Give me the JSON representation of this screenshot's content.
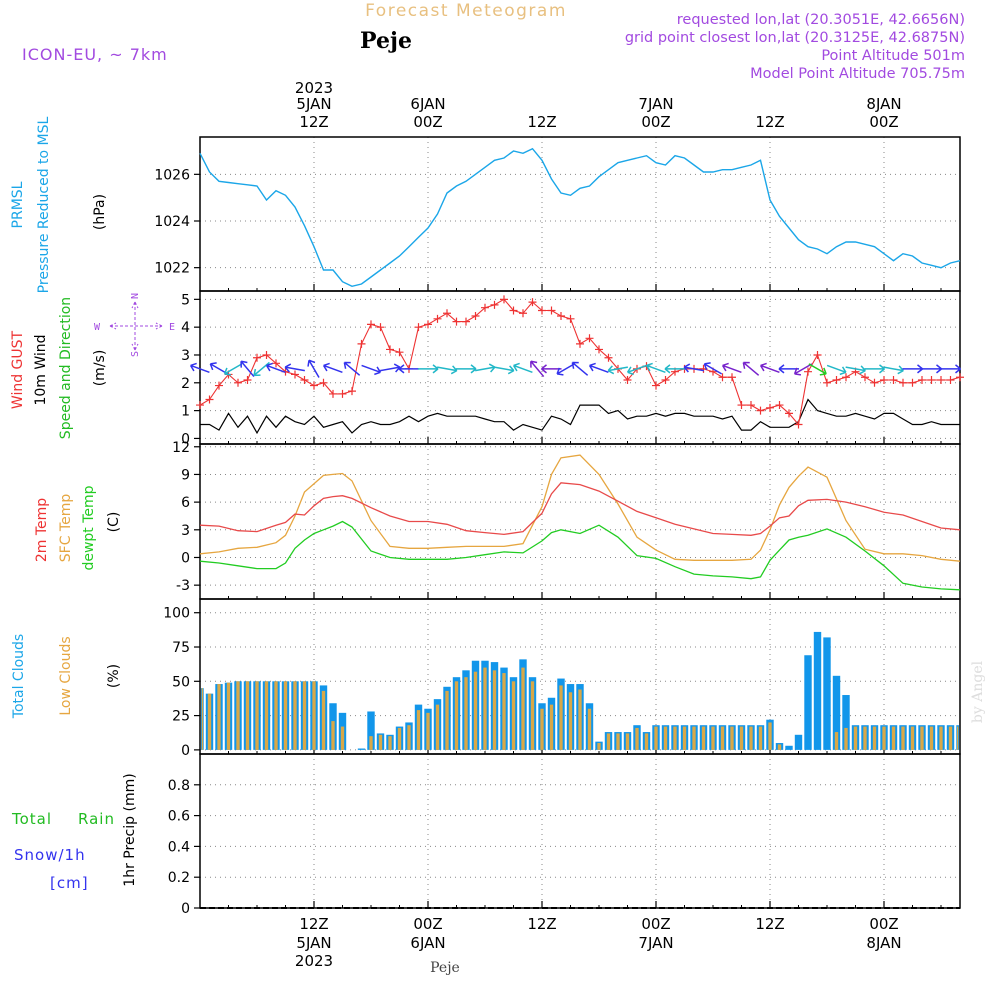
{
  "header": {
    "title": "Forecast Meteogram",
    "location": "Peje",
    "model": "ICON-EU, ~ 7km",
    "requested": "requested lon,lat (20.3051E, 42.6656N)",
    "gridpoint": "grid point closest lon,lat (20.3125E, 42.6875N)",
    "point_altitude": "Point Altitude 501m",
    "model_altitude": "Model Point Altitude 705.75m",
    "footer_location": "Peje",
    "watermark": "by Angel"
  },
  "time_axis": {
    "top_labels": [
      {
        "l1": "2023",
        "l2": "5JAN",
        "l3": "12Z",
        "h": 12
      },
      {
        "l1": "",
        "l2": "6JAN",
        "l3": "00Z",
        "h": 24
      },
      {
        "l1": "",
        "l2": "",
        "l3": "12Z",
        "h": 36
      },
      {
        "l1": "",
        "l2": "7JAN",
        "l3": "00Z",
        "h": 48
      },
      {
        "l1": "",
        "l2": "",
        "l3": "12Z",
        "h": 60
      },
      {
        "l1": "",
        "l2": "8JAN",
        "l3": "00Z",
        "h": 72
      }
    ],
    "bottom_labels": [
      {
        "l1": "12Z",
        "l2": "5JAN",
        "l3": "2023",
        "h": 12
      },
      {
        "l1": "00Z",
        "l2": "6JAN",
        "l3": "",
        "h": 24
      },
      {
        "l1": "12Z",
        "l2": "",
        "l3": "",
        "h": 36
      },
      {
        "l1": "00Z",
        "l2": "7JAN",
        "l3": "",
        "h": 48
      },
      {
        "l1": "12Z",
        "l2": "",
        "l3": "",
        "h": 60
      },
      {
        "l1": "00Z",
        "l2": "8JAN",
        "l3": "",
        "h": 72
      }
    ]
  },
  "panels": {
    "pressure": {
      "label1": "PRMSL",
      "label2": "Pressure Reduced to MSL",
      "unit": "(hPa)"
    },
    "wind": {
      "label1": "Wind GUST",
      "label2": "10m Wind",
      "label3": "Speed and Direction",
      "unit": "(m/s)",
      "compass_n": "N",
      "compass_s": "S",
      "compass_w": "W",
      "compass_e": "E"
    },
    "temp": {
      "label1": "2m Temp",
      "label2": "SFC Temp",
      "label3": "dewpt Temp",
      "unit": "(C)"
    },
    "clouds": {
      "label1": "Total Clouds",
      "label2": "Low Clouds",
      "unit": "(%)"
    },
    "precip": {
      "label1": "Total",
      "label2": "Rain",
      "label3": "Snow/1h",
      "label4": "[cm]",
      "unit": "1hr Precip (mm)"
    }
  },
  "colors": {
    "pressure": "#1ba6e8",
    "gust": "#ee3333",
    "wind": "#000000",
    "t2m": "#e84a4a",
    "tsfc": "#e6a640",
    "tdew": "#22cc22",
    "total_cloud": "#1296ea",
    "low_cloud": "#d8a848",
    "title": "#e8c080",
    "meta": "#a24ae0",
    "cyan_label": "#1ba6e8",
    "green_label": "#22bb22",
    "orange_label": "#e6a640",
    "red_label": "#ee3333",
    "blue_label": "#3333ee"
  },
  "chart_data": [
    {
      "type": "line",
      "name": "pressure",
      "x_range": [
        0,
        80
      ],
      "ylim": [
        1021,
        1027.6
      ],
      "yticks": [
        1022,
        1024,
        1026
      ],
      "x": [
        0,
        1,
        2,
        3,
        4,
        5,
        6,
        7,
        8,
        9,
        10,
        11,
        12,
        13,
        14,
        15,
        16,
        17,
        18,
        19,
        20,
        21,
        22,
        23,
        24,
        25,
        26,
        27,
        28,
        29,
        30,
        31,
        32,
        33,
        34,
        35,
        36,
        37,
        38,
        39,
        40,
        41,
        42,
        43,
        44,
        45,
        46,
        47,
        48,
        49,
        50,
        51,
        52,
        53,
        54,
        55,
        56,
        57,
        58,
        59,
        60,
        61,
        62,
        63,
        64,
        65,
        66,
        67,
        68,
        69,
        70,
        71,
        72,
        73,
        74,
        75,
        76,
        77,
        78,
        79,
        80
      ],
      "values": [
        1026.9,
        1026.1,
        1025.7,
        1025.65,
        1025.6,
        1025.55,
        1025.5,
        1024.9,
        1025.3,
        1025.1,
        1024.6,
        1023.8,
        1022.9,
        1021.9,
        1021.9,
        1021.4,
        1021.2,
        1021.3,
        1021.6,
        1021.9,
        1022.2,
        1022.5,
        1022.9,
        1023.3,
        1023.7,
        1024.3,
        1025.2,
        1025.5,
        1025.7,
        1026.0,
        1026.3,
        1026.6,
        1026.7,
        1027.0,
        1026.9,
        1027.1,
        1026.6,
        1025.8,
        1025.2,
        1025.1,
        1025.4,
        1025.5,
        1025.9,
        1026.2,
        1026.5,
        1026.6,
        1026.7,
        1026.8,
        1026.5,
        1026.4,
        1026.8,
        1026.7,
        1026.4,
        1026.1,
        1026.1,
        1026.2,
        1026.2,
        1026.3,
        1026.4,
        1026.6,
        1024.9,
        1024.2,
        1023.7,
        1023.2,
        1022.9,
        1022.8,
        1022.6,
        1022.9,
        1023.1,
        1023.1,
        1023.0,
        1022.9,
        1022.6,
        1022.3,
        1022.6,
        1022.5,
        1022.2,
        1022.1,
        1022.0,
        1022.2,
        1022.3
      ]
    },
    {
      "type": "line",
      "name": "wind",
      "x_range": [
        0,
        80
      ],
      "ylim": [
        -0.2,
        5.3
      ],
      "yticks": [
        0,
        1,
        2,
        3,
        4,
        5
      ],
      "x": [
        0,
        1,
        2,
        3,
        4,
        5,
        6,
        7,
        8,
        9,
        10,
        11,
        12,
        13,
        14,
        15,
        16,
        17,
        18,
        19,
        20,
        21,
        22,
        23,
        24,
        25,
        26,
        27,
        28,
        29,
        30,
        31,
        32,
        33,
        34,
        35,
        36,
        37,
        38,
        39,
        40,
        41,
        42,
        43,
        44,
        45,
        46,
        47,
        48,
        49,
        50,
        51,
        52,
        53,
        54,
        55,
        56,
        57,
        58,
        59,
        60,
        61,
        62,
        63,
        64,
        65,
        66,
        67,
        68,
        69,
        70,
        71,
        72,
        73,
        74,
        75,
        76,
        77,
        78,
        79,
        80
      ],
      "gust": [
        1.2,
        1.4,
        1.9,
        2.3,
        2.0,
        2.1,
        2.9,
        3.0,
        2.7,
        2.4,
        2.3,
        2.1,
        1.9,
        2.0,
        1.6,
        1.6,
        1.7,
        3.4,
        4.1,
        4.0,
        3.2,
        3.1,
        2.5,
        4.0,
        4.1,
        4.3,
        4.5,
        4.2,
        4.2,
        4.4,
        4.7,
        4.8,
        5.0,
        4.6,
        4.5,
        4.9,
        4.6,
        4.6,
        4.4,
        4.3,
        3.4,
        3.6,
        3.2,
        2.9,
        2.5,
        2.1,
        2.5,
        2.6,
        1.9,
        2.1,
        2.4,
        2.5,
        2.5,
        2.5,
        2.4,
        2.2,
        2.2,
        1.2,
        1.2,
        1.0,
        1.1,
        1.2,
        0.9,
        0.5,
        2.4,
        3.0,
        2.0,
        2.1,
        2.2,
        2.4,
        2.2,
        2.0,
        2.1,
        2.1,
        2.0,
        2.0,
        2.1,
        2.1,
        2.1,
        2.1,
        2.2
      ],
      "speed": [
        0.5,
        0.5,
        0.3,
        0.9,
        0.4,
        0.8,
        0.2,
        0.8,
        0.4,
        0.8,
        0.6,
        0.5,
        0.8,
        0.4,
        0.5,
        0.6,
        0.2,
        0.5,
        0.6,
        0.5,
        0.5,
        0.6,
        0.8,
        0.6,
        0.8,
        0.9,
        0.8,
        0.8,
        0.8,
        0.8,
        0.7,
        0.6,
        0.6,
        0.3,
        0.5,
        0.4,
        0.3,
        0.8,
        0.7,
        0.5,
        1.2,
        1.2,
        1.2,
        0.9,
        1.0,
        0.7,
        0.8,
        0.8,
        0.9,
        0.8,
        0.9,
        0.9,
        0.8,
        0.8,
        0.8,
        0.7,
        0.8,
        0.3,
        0.3,
        0.6,
        0.4,
        0.4,
        0.4,
        0.6,
        1.4,
        1.0,
        0.9,
        0.8,
        0.8,
        0.9,
        0.8,
        0.7,
        0.9,
        0.9,
        0.7,
        0.5,
        0.5,
        0.6,
        0.5,
        0.5,
        0.5
      ],
      "arrows": [
        {
          "h": 0,
          "a": 200,
          "c": "#3333ee"
        },
        {
          "h": 2,
          "a": 210,
          "c": "#3333ee"
        },
        {
          "h": 3.5,
          "a": 150,
          "c": "#22b8c8"
        },
        {
          "h": 5,
          "a": 230,
          "c": "#3333ee"
        },
        {
          "h": 6.5,
          "a": 140,
          "c": "#22b8c8"
        },
        {
          "h": 8,
          "a": 200,
          "c": "#3333ee"
        },
        {
          "h": 10,
          "a": 190,
          "c": "#3333ee"
        },
        {
          "h": 12,
          "a": 240,
          "c": "#3333ee"
        },
        {
          "h": 14,
          "a": 200,
          "c": "#3333ee"
        },
        {
          "h": 16,
          "a": 220,
          "c": "#3333ee"
        },
        {
          "h": 18,
          "a": 20,
          "c": "#3333ee"
        },
        {
          "h": 20,
          "a": 350,
          "c": "#3333ee"
        },
        {
          "h": 22,
          "a": 180,
          "c": "#3333ee"
        },
        {
          "h": 24,
          "a": 0,
          "c": "#22b8c8"
        },
        {
          "h": 26,
          "a": 10,
          "c": "#22b8c8"
        },
        {
          "h": 28,
          "a": 0,
          "c": "#22b8c8"
        },
        {
          "h": 30,
          "a": 350,
          "c": "#22b8c8"
        },
        {
          "h": 32,
          "a": 10,
          "c": "#22b8c8"
        },
        {
          "h": 34,
          "a": 200,
          "c": "#22b8c8"
        },
        {
          "h": 35.5,
          "a": 230,
          "c": "#7722cc"
        },
        {
          "h": 37,
          "a": 180,
          "c": "#7722cc"
        },
        {
          "h": 38.5,
          "a": 150,
          "c": "#3333ee"
        },
        {
          "h": 40,
          "a": 220,
          "c": "#3333ee"
        },
        {
          "h": 42,
          "a": 200,
          "c": "#3333ee"
        },
        {
          "h": 44,
          "a": 170,
          "c": "#22b8c8"
        },
        {
          "h": 46,
          "a": 160,
          "c": "#22b8c8"
        },
        {
          "h": 48,
          "a": 200,
          "c": "#22b8c8"
        },
        {
          "h": 50,
          "a": 180,
          "c": "#22b8c8"
        },
        {
          "h": 52,
          "a": 190,
          "c": "#3333ee"
        },
        {
          "h": 54,
          "a": 210,
          "c": "#3333ee"
        },
        {
          "h": 56,
          "a": 200,
          "c": "#7722cc"
        },
        {
          "h": 58,
          "a": 220,
          "c": "#7722cc"
        },
        {
          "h": 60,
          "a": 200,
          "c": "#7722cc"
        },
        {
          "h": 62,
          "a": 180,
          "c": "#3333ee"
        },
        {
          "h": 63.5,
          "a": 150,
          "c": "#7722cc"
        },
        {
          "h": 65,
          "a": 30,
          "c": "#22cc22"
        },
        {
          "h": 67,
          "a": 20,
          "c": "#22b8c8"
        },
        {
          "h": 69,
          "a": 10,
          "c": "#22b8c8"
        },
        {
          "h": 71,
          "a": 0,
          "c": "#22b8c8"
        },
        {
          "h": 73,
          "a": 10,
          "c": "#22b8c8"
        },
        {
          "h": 75,
          "a": 0,
          "c": "#3333ee"
        },
        {
          "h": 77,
          "a": 0,
          "c": "#3333ee"
        },
        {
          "h": 79,
          "a": 0,
          "c": "#3333ee"
        }
      ]
    },
    {
      "type": "line",
      "name": "temperature",
      "x_range": [
        0,
        80
      ],
      "ylim": [
        -4.5,
        12.3
      ],
      "yticks": [
        -3,
        0,
        3,
        6,
        9,
        12
      ],
      "x": [
        0,
        2,
        4,
        6,
        8,
        9,
        10,
        11,
        12,
        13,
        14,
        15,
        16,
        18,
        20,
        22,
        24,
        26,
        28,
        30,
        32,
        34,
        36,
        37,
        38,
        40,
        42,
        44,
        46,
        48,
        50,
        52,
        54,
        56,
        58,
        59,
        60,
        61,
        62,
        63,
        64,
        66,
        68,
        70,
        72,
        74,
        76,
        78,
        80
      ],
      "t2m": [
        3.5,
        3.4,
        2.9,
        2.8,
        3.5,
        3.8,
        4.7,
        4.6,
        5.6,
        6.4,
        6.6,
        6.7,
        6.4,
        5.4,
        4.5,
        3.9,
        3.9,
        3.6,
        2.9,
        2.7,
        2.5,
        2.8,
        4.8,
        6.9,
        8.1,
        7.9,
        7.2,
        6.1,
        5.0,
        4.3,
        3.6,
        3.1,
        2.6,
        2.5,
        2.4,
        2.6,
        3.4,
        4.3,
        4.5,
        5.6,
        6.2,
        6.3,
        6.0,
        5.5,
        4.9,
        4.6,
        3.9,
        3.2,
        3.0
      ],
      "tsfc": [
        0.4,
        0.6,
        1.0,
        1.1,
        1.6,
        2.4,
        4.5,
        7.1,
        8.0,
        8.9,
        9.0,
        9.1,
        8.3,
        4.0,
        1.2,
        1.0,
        1.0,
        1.1,
        1.2,
        1.2,
        1.2,
        1.5,
        5.5,
        9.0,
        10.8,
        11.1,
        9.0,
        5.8,
        2.2,
        0.8,
        -0.2,
        -0.3,
        -0.3,
        -0.3,
        -0.2,
        0.8,
        3.0,
        5.7,
        7.6,
        8.8,
        9.8,
        8.7,
        4.0,
        0.9,
        0.4,
        0.4,
        0.2,
        -0.2,
        -0.4
      ],
      "tdew": [
        -0.4,
        -0.6,
        -0.9,
        -1.2,
        -1.2,
        -0.6,
        1.0,
        1.9,
        2.6,
        3.0,
        3.4,
        3.9,
        3.3,
        0.7,
        0.0,
        -0.2,
        -0.2,
        -0.2,
        0.0,
        0.3,
        0.6,
        0.5,
        1.8,
        2.7,
        3.0,
        2.6,
        3.5,
        2.2,
        0.2,
        -0.1,
        -1.0,
        -1.8,
        -2.0,
        -2.1,
        -2.3,
        -2.1,
        -0.3,
        0.8,
        1.9,
        2.2,
        2.4,
        3.1,
        2.2,
        0.7,
        -0.9,
        -2.8,
        -3.2,
        -3.4,
        -3.5
      ]
    },
    {
      "type": "bar",
      "name": "clouds",
      "x_range": [
        0,
        80
      ],
      "ylim": [
        -3,
        110
      ],
      "yticks": [
        0,
        25,
        50,
        75,
        100
      ],
      "x": [
        0,
        1,
        2,
        3,
        4,
        5,
        6,
        7,
        8,
        9,
        10,
        11,
        12,
        13,
        14,
        15,
        16,
        17,
        18,
        19,
        20,
        21,
        22,
        23,
        24,
        25,
        26,
        27,
        28,
        29,
        30,
        31,
        32,
        33,
        34,
        35,
        36,
        37,
        38,
        39,
        40,
        41,
        42,
        43,
        44,
        45,
        46,
        47,
        48,
        49,
        50,
        51,
        52,
        53,
        54,
        55,
        56,
        57,
        58,
        59,
        60,
        61,
        62,
        63,
        64,
        65,
        66,
        67,
        68,
        69,
        70,
        71,
        72,
        73,
        74,
        75,
        76,
        77,
        78,
        79,
        80
      ],
      "total": [
        45,
        41,
        48,
        49,
        50,
        50,
        50,
        50,
        50,
        50,
        50,
        50,
        50,
        47,
        34,
        27,
        0,
        1,
        28,
        12,
        11,
        17,
        20,
        33,
        30,
        37,
        46,
        53,
        58,
        65,
        65,
        64,
        60,
        53,
        66,
        53,
        34,
        38,
        52,
        48,
        48,
        34,
        6,
        13,
        13,
        13,
        18,
        13,
        18,
        18,
        18,
        18,
        18,
        18,
        18,
        18,
        18,
        18,
        18,
        18,
        22,
        5,
        3,
        11,
        69,
        86,
        82,
        54,
        40,
        18,
        18,
        18,
        18,
        18,
        18,
        18,
        18,
        18,
        18,
        18,
        18
      ],
      "low": [
        45,
        41,
        48,
        49,
        50,
        50,
        50,
        50,
        50,
        50,
        50,
        50,
        50,
        43,
        21,
        17,
        0,
        0,
        10,
        11,
        10,
        16,
        18,
        29,
        27,
        33,
        43,
        50,
        53,
        57,
        60,
        58,
        56,
        50,
        60,
        50,
        30,
        33,
        47,
        42,
        44,
        30,
        5,
        12,
        12,
        12,
        16,
        12,
        17,
        17,
        17,
        17,
        17,
        17,
        17,
        17,
        17,
        17,
        17,
        17,
        20,
        4,
        0,
        0,
        0,
        0,
        0,
        13,
        16,
        17,
        17,
        17,
        17,
        17,
        17,
        17,
        17,
        17,
        17,
        17,
        17
      ]
    },
    {
      "type": "line",
      "name": "precipitation",
      "x_range": [
        0,
        80
      ],
      "ylim": [
        0,
        1.0
      ],
      "yticks": [
        0,
        0.2,
        0.4,
        0.6,
        0.8
      ],
      "x": [
        0,
        80
      ],
      "rain": [
        0,
        0
      ],
      "snow": [
        0,
        0
      ]
    }
  ]
}
